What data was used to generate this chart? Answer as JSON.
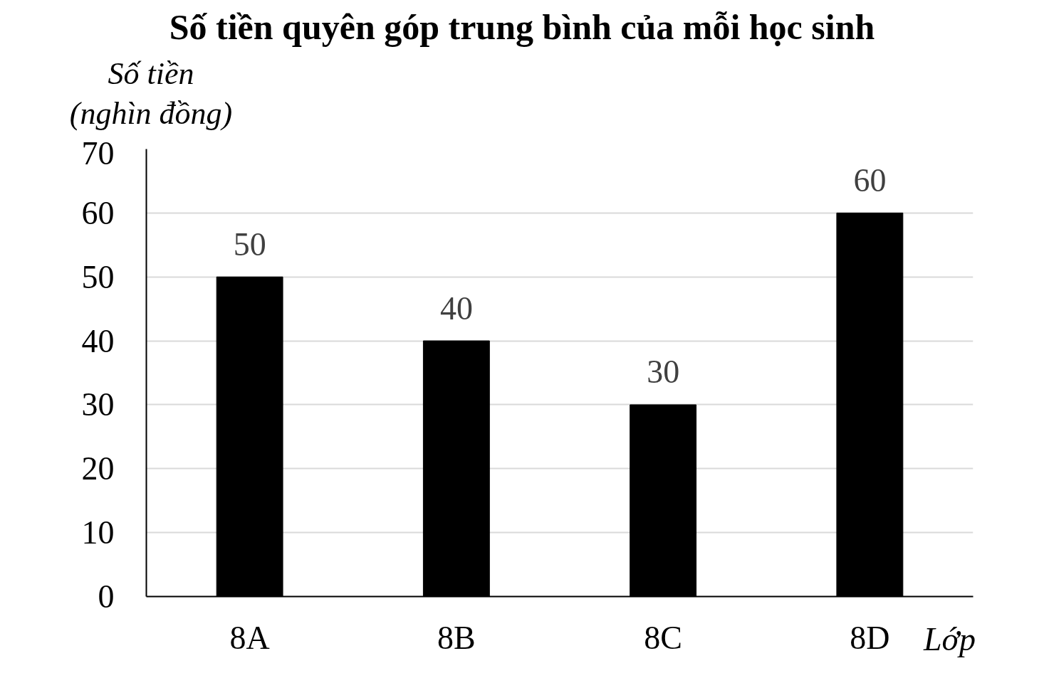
{
  "chart_data": {
    "type": "bar",
    "title": "Số tiền quyên góp trung bình của mỗi học sinh",
    "ylabel": "Số tiền\n(nghìn đồng)",
    "xlabel": "Lớp",
    "categories": [
      "8A",
      "8B",
      "8C",
      "8D"
    ],
    "values": [
      50,
      40,
      30,
      60
    ],
    "color": "#000000",
    "ylim": [
      0,
      70
    ],
    "yticks": [
      0,
      10,
      20,
      30,
      40,
      50,
      60,
      70
    ],
    "grid": "y",
    "data_labels": true
  }
}
